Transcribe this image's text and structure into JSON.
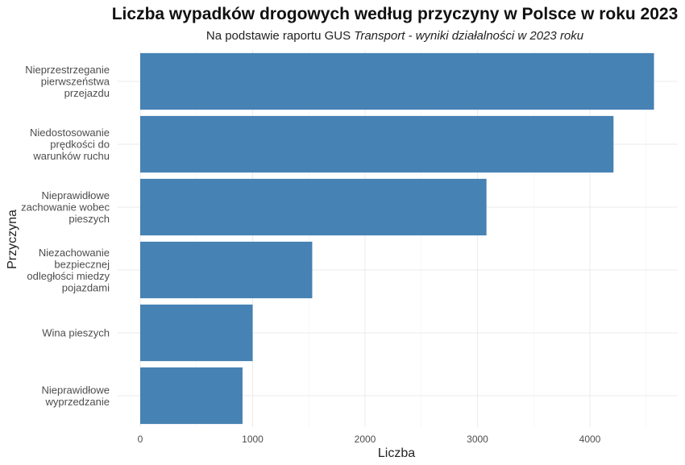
{
  "chart_data": {
    "type": "bar",
    "orientation": "horizontal",
    "title": "Liczba wypadków drogowych według przyczyny w Polsce w roku 2023",
    "subtitle_prefix": "Na podstawie raportu GUS ",
    "subtitle_italic": "Transport - wyniki działalności w 2023 roku",
    "xlabel": "Liczba",
    "ylabel": "Przyczyna",
    "categories": [
      [
        "Nieprzestrzeganie",
        "pierwszeństwa",
        "przejazdu"
      ],
      [
        "Niedostosowanie",
        "prędkości do",
        "warunków ruchu"
      ],
      [
        "Nieprawidłowe",
        "zachowanie wobec",
        "pieszych"
      ],
      [
        "Niezachowanie",
        "bezpiecznej",
        "odległości miedzy",
        "pojazdami"
      ],
      [
        "Wina pieszych"
      ],
      [
        "Nieprawidłowe",
        "wyprzedzanie"
      ]
    ],
    "values": [
      4570,
      4210,
      3080,
      1530,
      1000,
      910
    ],
    "xlim": [
      0,
      4800
    ],
    "xticks": [
      0,
      1000,
      2000,
      3000,
      4000
    ],
    "xtick_labels": [
      "0",
      "1000",
      "2000",
      "3000",
      "4000"
    ],
    "bar_color": "#4682B4",
    "grid": true,
    "legend": "none"
  }
}
